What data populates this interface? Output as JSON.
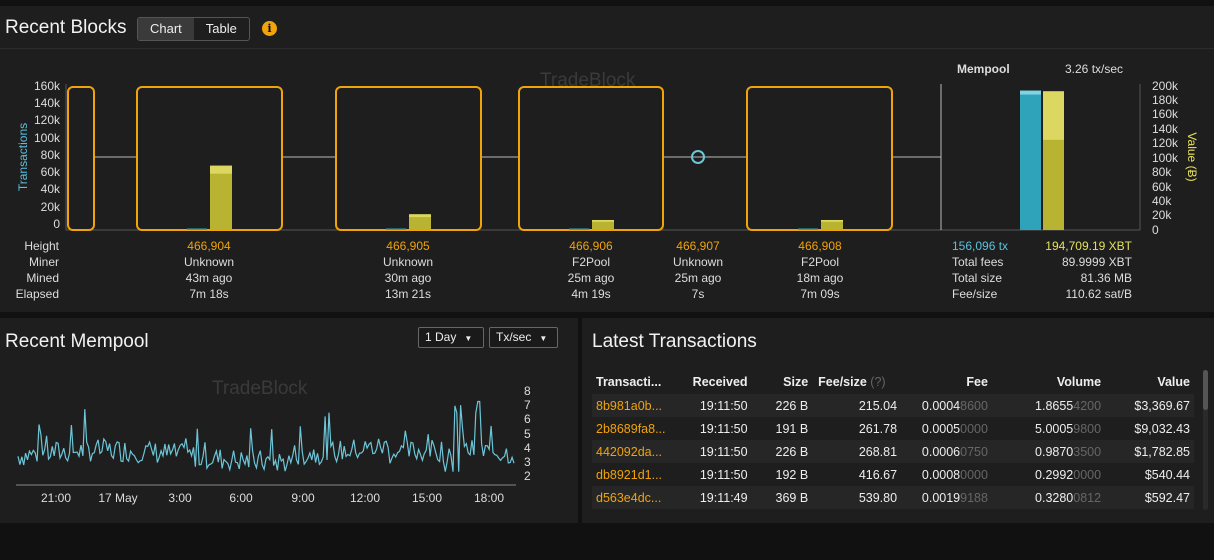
{
  "blocks": {
    "title": "Recent Blocks",
    "toggle": [
      "Chart",
      "Table"
    ],
    "watermark": "TradeBlock",
    "left_axis_label": "Transactions",
    "right_axis_label": "Value (Ƀ)",
    "left_ticks": [
      "160k",
      "140k",
      "120k",
      "100k",
      "80k",
      "60k",
      "40k",
      "20k",
      "0"
    ],
    "right_ticks": [
      "200k",
      "180k",
      "160k",
      "140k",
      "120k",
      "100k",
      "80k",
      "60k",
      "40k",
      "20k",
      "0"
    ],
    "row_labels": [
      "Height",
      "Miner",
      "Mined",
      "Elapsed"
    ],
    "items": [
      {
        "height": "466,904",
        "miner": "Unknown",
        "mined": "43m ago",
        "elapsed": "7m 18s",
        "tx_bar": 0.01,
        "value_bar": 0.45
      },
      {
        "height": "466,905",
        "miner": "Unknown",
        "mined": "30m ago",
        "elapsed": "13m 21s",
        "tx_bar": 0.01,
        "value_bar": 0.11
      },
      {
        "height": "466,906",
        "miner": "F2Pool",
        "mined": "25m ago",
        "elapsed": "4m 19s",
        "tx_bar": 0.01,
        "value_bar": 0.07
      },
      {
        "height": "466,907",
        "miner": "Unknown",
        "mined": "25m ago",
        "elapsed": "7s"
      },
      {
        "height": "466,908",
        "miner": "F2Pool",
        "mined": "18m ago",
        "elapsed": "7m 09s",
        "tx_bar": 0.01,
        "value_bar": 0.07
      }
    ],
    "mempool": {
      "label": "Mempool",
      "rate": "3.26 tx/sec",
      "tx_count": "156,096 tx",
      "value": "194,709.19 XBT",
      "rows": [
        {
          "label": "Total fees",
          "value": "89.9999 XBT"
        },
        {
          "label": "Total size",
          "value": "81.36 MB"
        },
        {
          "label": "Fee/size",
          "value": "110.62 sat/B"
        }
      ],
      "tx_level": 0.975,
      "value_level": 0.97
    }
  },
  "recent_mempool": {
    "title": "Recent Mempool",
    "range": "1 Day",
    "unit": "Tx/sec",
    "watermark": "TradeBlock",
    "y_ticks": [
      "8",
      "7",
      "6",
      "5",
      "4",
      "3",
      "2"
    ],
    "x_ticks": [
      "21:00",
      "17 May",
      "3:00",
      "6:00",
      "9:00",
      "12:00",
      "15:00",
      "18:00"
    ]
  },
  "latest_tx": {
    "title": "Latest Transactions",
    "columns": [
      "Transacti...",
      "Received",
      "Size",
      "Fee/size",
      "(?)",
      "Fee",
      "Volume",
      "Value"
    ],
    "rows": [
      {
        "hash": "8b981a0b...",
        "received": "19:11:50",
        "size": "226 B",
        "fee_size": "215.04",
        "fee_main": "0.0004",
        "fee_dim": "8600",
        "vol_main": "1.8655",
        "vol_dim": "4200",
        "value": "$3,369.67"
      },
      {
        "hash": "2b8689fa8...",
        "received": "19:11:50",
        "size": "191 B",
        "fee_size": "261.78",
        "fee_main": "0.0005",
        "fee_dim": "0000",
        "vol_main": "5.0005",
        "vol_dim": "9800",
        "value": "$9,032.43"
      },
      {
        "hash": "442092da...",
        "received": "19:11:50",
        "size": "226 B",
        "fee_size": "268.81",
        "fee_main": "0.0006",
        "fee_dim": "0750",
        "vol_main": "0.9870",
        "vol_dim": "3500",
        "value": "$1,782.85"
      },
      {
        "hash": "db8921d1...",
        "received": "19:11:50",
        "size": "192 B",
        "fee_size": "416.67",
        "fee_main": "0.0008",
        "fee_dim": "0000",
        "vol_main": "0.2992",
        "vol_dim": "0000",
        "value": "$540.44"
      },
      {
        "hash": "d563e4dc...",
        "received": "19:11:49",
        "size": "369 B",
        "fee_size": "539.80",
        "fee_main": "0.0019",
        "fee_dim": "9188",
        "vol_main": "0.3280",
        "vol_dim": "0812",
        "value": "$592.47"
      }
    ]
  },
  "colors": {
    "accent": "#f0a30a",
    "tx_bar": "#2fa3b9",
    "value_bar": "#b8b432",
    "line": "#6cc6d8"
  }
}
